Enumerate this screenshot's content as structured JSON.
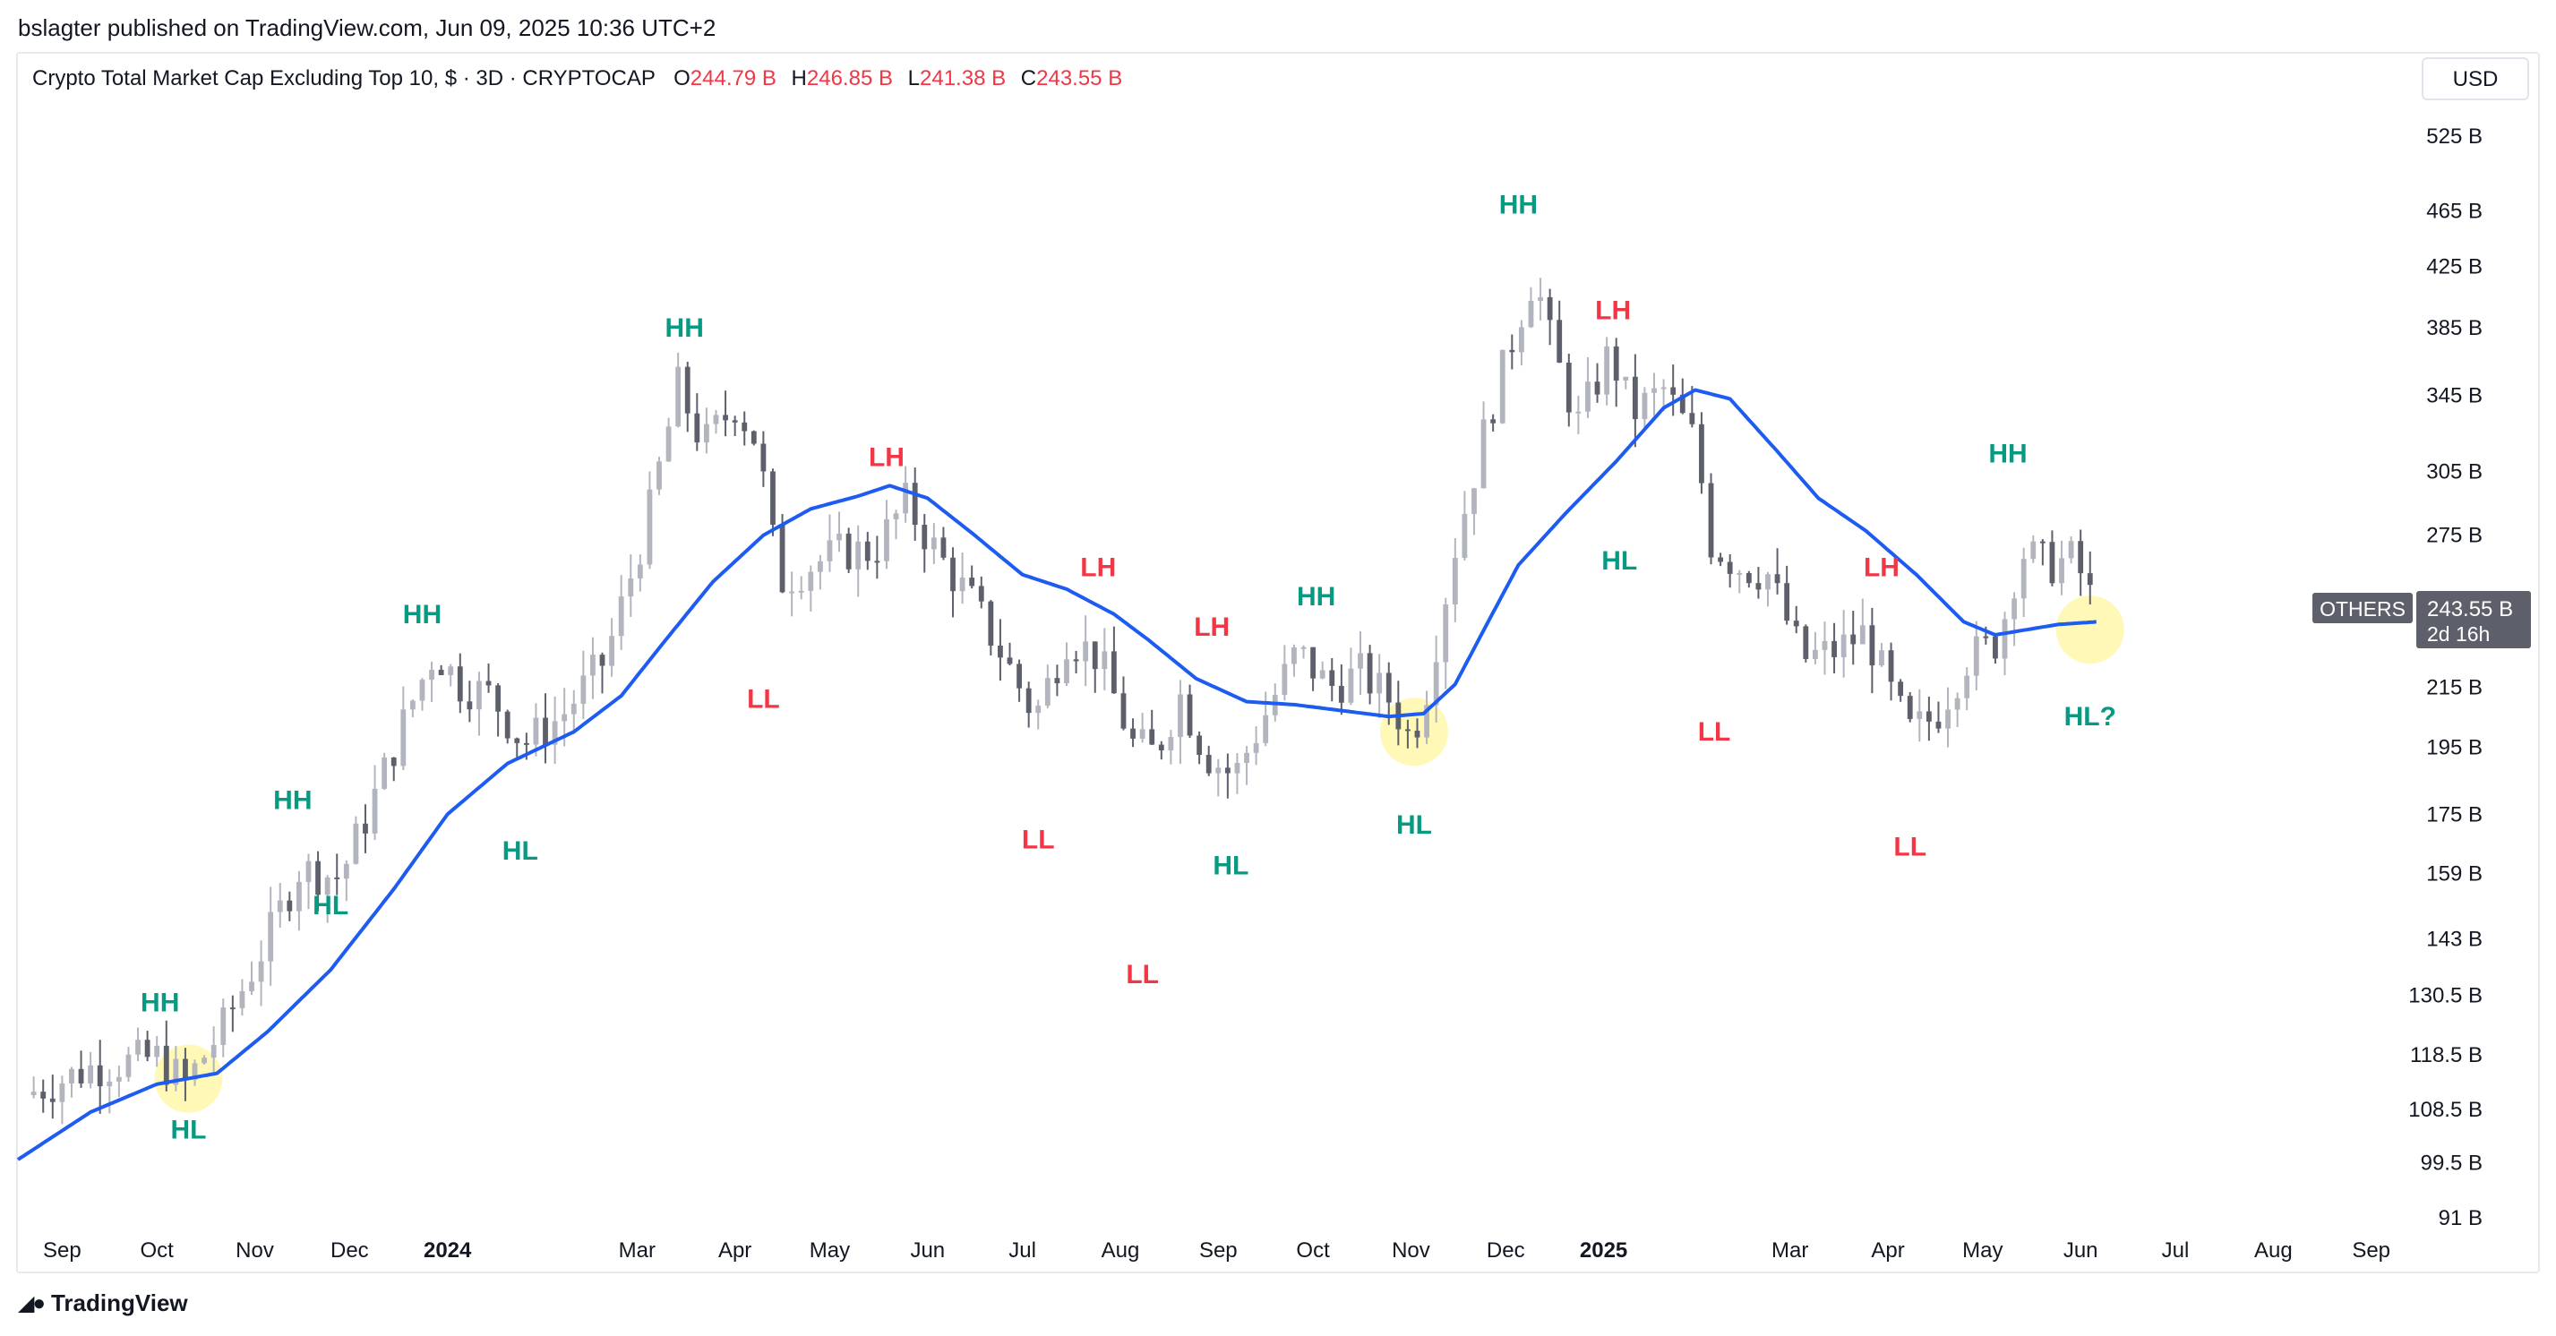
{
  "header": {
    "publisher_line": "bslagter published on TradingView.com, Jun 09, 2025 10:36 UTC+2"
  },
  "legend": {
    "symbol": "Crypto Total Market Cap Excluding Top 10, $ · 3D · CRYPTOCAP",
    "o_label": "O",
    "o_value": "244.79 B",
    "h_label": "H",
    "h_value": "246.85 B",
    "l_label": "L",
    "l_value": "241.38 B",
    "c_label": "C",
    "c_value": "243.55 B"
  },
  "currency_button": "USD",
  "price_tag": {
    "symbol": "OTHERS",
    "price": "243.55 B",
    "countdown": "2d 16h"
  },
  "footer": {
    "brand": "TradingView"
  },
  "colors": {
    "up_candle": "#b2b5be",
    "down_candle": "#5d606b",
    "ma_line": "#1e5bf0",
    "higher_label": "#089981",
    "lower_label": "#f23645",
    "highlight": "#fff59d"
  },
  "chart_data": {
    "type": "candlestick",
    "title": "Crypto Total Market Cap Excluding Top 10",
    "symbol": "OTHERS",
    "interval": "3D",
    "y_scale": "log",
    "ylim": [
      91,
      600
    ],
    "y_ticks": [
      "525 B",
      "465 B",
      "425 B",
      "385 B",
      "345 B",
      "305 B",
      "275 B",
      "215 B",
      "195 B",
      "175 B",
      "159 B",
      "143 B",
      "130.5 B",
      "118.5 B",
      "108.5 B",
      "99.5 B",
      "91 B"
    ],
    "x_ticks": [
      {
        "label": "Sep",
        "date": "2023-09-01"
      },
      {
        "label": "Oct",
        "date": "2023-10-01"
      },
      {
        "label": "Nov",
        "date": "2023-11-01"
      },
      {
        "label": "Dec",
        "date": "2023-12-01"
      },
      {
        "label": "2024",
        "date": "2024-01-01",
        "bold": true
      },
      {
        "label": "Mar",
        "date": "2024-03-01"
      },
      {
        "label": "Apr",
        "date": "2024-04-01"
      },
      {
        "label": "May",
        "date": "2024-05-01"
      },
      {
        "label": "Jun",
        "date": "2024-06-01"
      },
      {
        "label": "Jul",
        "date": "2024-07-01"
      },
      {
        "label": "Aug",
        "date": "2024-08-01"
      },
      {
        "label": "Sep",
        "date": "2024-09-01"
      },
      {
        "label": "Oct",
        "date": "2024-10-01"
      },
      {
        "label": "Nov",
        "date": "2024-11-01"
      },
      {
        "label": "Dec",
        "date": "2024-12-01"
      },
      {
        "label": "2025",
        "date": "2025-01-01",
        "bold": true
      },
      {
        "label": "Mar",
        "date": "2025-03-01"
      },
      {
        "label": "Apr",
        "date": "2025-04-01"
      },
      {
        "label": "May",
        "date": "2025-05-01"
      },
      {
        "label": "Jun",
        "date": "2025-06-01"
      },
      {
        "label": "Jul",
        "date": "2025-07-01"
      },
      {
        "label": "Aug",
        "date": "2025-08-01"
      },
      {
        "label": "Sep",
        "date": "2025-09-01"
      }
    ],
    "x_range": [
      "2023-08-18",
      "2025-09-13"
    ],
    "price_path": [
      [
        "2023-08-20",
        111
      ],
      [
        "2023-09-10",
        116
      ],
      [
        "2023-10-01",
        118
      ],
      [
        "2023-10-10",
        113
      ],
      [
        "2023-10-22",
        124
      ],
      [
        "2023-11-05",
        143
      ],
      [
        "2023-11-15",
        160
      ],
      [
        "2023-11-28",
        158
      ],
      [
        "2023-12-08",
        178
      ],
      [
        "2023-12-20",
        208
      ],
      [
        "2023-12-28",
        228
      ],
      [
        "2024-01-05",
        216
      ],
      [
        "2024-01-15",
        212
      ],
      [
        "2024-01-25",
        196
      ],
      [
        "2024-02-06",
        205
      ],
      [
        "2024-02-20",
        225
      ],
      [
        "2024-03-04",
        280
      ],
      [
        "2024-03-14",
        350
      ],
      [
        "2024-03-22",
        318
      ],
      [
        "2024-04-01",
        340
      ],
      [
        "2024-04-08",
        320
      ],
      [
        "2024-04-15",
        255
      ],
      [
        "2024-04-25",
        262
      ],
      [
        "2024-05-05",
        268
      ],
      [
        "2024-05-15",
        268
      ],
      [
        "2024-05-25",
        290
      ],
      [
        "2024-06-05",
        265
      ],
      [
        "2024-06-15",
        247
      ],
      [
        "2024-06-24",
        228
      ],
      [
        "2024-07-05",
        205
      ],
      [
        "2024-07-15",
        233
      ],
      [
        "2024-07-25",
        226
      ],
      [
        "2024-08-05",
        196
      ],
      [
        "2024-08-12",
        193
      ],
      [
        "2024-08-20",
        212
      ],
      [
        "2024-08-28",
        193
      ],
      [
        "2024-09-06",
        186
      ],
      [
        "2024-09-16",
        206
      ],
      [
        "2024-09-26",
        228
      ],
      [
        "2024-10-06",
        215
      ],
      [
        "2024-10-16",
        220
      ],
      [
        "2024-10-26",
        210
      ],
      [
        "2024-11-01",
        197
      ],
      [
        "2024-11-06",
        215
      ],
      [
        "2024-11-15",
        270
      ],
      [
        "2024-11-25",
        330
      ],
      [
        "2024-12-05",
        390
      ],
      [
        "2024-12-10",
        420
      ],
      [
        "2024-12-16",
        370
      ],
      [
        "2024-12-24",
        330
      ],
      [
        "2025-01-03",
        370
      ],
      [
        "2025-01-10",
        335
      ],
      [
        "2025-01-20",
        348
      ],
      [
        "2025-01-30",
        320
      ],
      [
        "2025-02-04",
        272
      ],
      [
        "2025-02-12",
        262
      ],
      [
        "2025-02-22",
        258
      ],
      [
        "2025-03-05",
        225
      ],
      [
        "2025-03-15",
        228
      ],
      [
        "2025-03-25",
        235
      ],
      [
        "2025-04-03",
        210
      ],
      [
        "2025-04-08",
        200
      ],
      [
        "2025-04-16",
        205
      ],
      [
        "2025-04-26",
        225
      ],
      [
        "2025-05-06",
        232
      ],
      [
        "2025-05-13",
        268
      ],
      [
        "2025-05-22",
        262
      ],
      [
        "2025-05-30",
        265
      ],
      [
        "2025-06-03",
        252
      ],
      [
        "2025-06-06",
        243.55
      ]
    ],
    "ma_path": [
      [
        "2023-08-18",
        100
      ],
      [
        "2023-09-10",
        108
      ],
      [
        "2023-10-01",
        113
      ],
      [
        "2023-10-20",
        115
      ],
      [
        "2023-11-05",
        123
      ],
      [
        "2023-11-25",
        136
      ],
      [
        "2023-12-15",
        155
      ],
      [
        "2024-01-01",
        175
      ],
      [
        "2024-01-20",
        190
      ],
      [
        "2024-02-10",
        200
      ],
      [
        "2024-02-25",
        212
      ],
      [
        "2024-03-10",
        232
      ],
      [
        "2024-03-25",
        255
      ],
      [
        "2024-04-10",
        275
      ],
      [
        "2024-04-25",
        287
      ],
      [
        "2024-05-10",
        293
      ],
      [
        "2024-05-20",
        298
      ],
      [
        "2024-06-01",
        292
      ],
      [
        "2024-06-15",
        276
      ],
      [
        "2024-07-01",
        258
      ],
      [
        "2024-07-15",
        252
      ],
      [
        "2024-07-30",
        242
      ],
      [
        "2024-08-10",
        232
      ],
      [
        "2024-08-25",
        218
      ],
      [
        "2024-09-10",
        210
      ],
      [
        "2024-09-25",
        209
      ],
      [
        "2024-10-10",
        207
      ],
      [
        "2024-10-25",
        205
      ],
      [
        "2024-11-05",
        206
      ],
      [
        "2024-11-15",
        216
      ],
      [
        "2024-11-25",
        238
      ],
      [
        "2024-12-05",
        262
      ],
      [
        "2024-12-20",
        285
      ],
      [
        "2025-01-05",
        310
      ],
      [
        "2025-01-20",
        338
      ],
      [
        "2025-01-30",
        348
      ],
      [
        "2025-02-10",
        343
      ],
      [
        "2025-02-25",
        315
      ],
      [
        "2025-03-10",
        292
      ],
      [
        "2025-03-25",
        277
      ],
      [
        "2025-04-10",
        258
      ],
      [
        "2025-04-25",
        239
      ],
      [
        "2025-05-05",
        234
      ],
      [
        "2025-05-15",
        236
      ],
      [
        "2025-05-25",
        238
      ],
      [
        "2025-06-06",
        239
      ]
    ],
    "annotations": [
      {
        "text": "HH",
        "kind": "higher",
        "date": "2023-10-02",
        "value": 129
      },
      {
        "text": "HL",
        "kind": "higher",
        "date": "2023-10-11",
        "value": 105,
        "highlight": true
      },
      {
        "text": "HH",
        "kind": "higher",
        "date": "2023-11-13",
        "value": 179
      },
      {
        "text": "HL",
        "kind": "higher",
        "date": "2023-11-25",
        "value": 151
      },
      {
        "text": "HH",
        "kind": "higher",
        "date": "2023-12-24",
        "value": 242
      },
      {
        "text": "HL",
        "kind": "higher",
        "date": "2024-01-24",
        "value": 165
      },
      {
        "text": "HH",
        "kind": "higher",
        "date": "2024-03-16",
        "value": 385
      },
      {
        "text": "LL",
        "kind": "lower",
        "date": "2024-04-10",
        "value": 211
      },
      {
        "text": "LH",
        "kind": "lower",
        "date": "2024-05-19",
        "value": 312
      },
      {
        "text": "LL",
        "kind": "lower",
        "date": "2024-07-06",
        "value": 168
      },
      {
        "text": "LH",
        "kind": "lower",
        "date": "2024-07-25",
        "value": 261
      },
      {
        "text": "LL",
        "kind": "lower",
        "date": "2024-08-08",
        "value": 135
      },
      {
        "text": "LH",
        "kind": "lower",
        "date": "2024-08-30",
        "value": 237
      },
      {
        "text": "HL",
        "kind": "higher",
        "date": "2024-09-05",
        "value": 161
      },
      {
        "text": "HH",
        "kind": "higher",
        "date": "2024-10-02",
        "value": 249
      },
      {
        "text": "HL",
        "kind": "higher",
        "date": "2024-11-02",
        "value": 172,
        "highlight": true
      },
      {
        "text": "HH",
        "kind": "higher",
        "date": "2024-12-05",
        "value": 470
      },
      {
        "text": "LH",
        "kind": "lower",
        "date": "2025-01-04",
        "value": 396
      },
      {
        "text": "HL",
        "kind": "higher",
        "date": "2025-01-06",
        "value": 264
      },
      {
        "text": "LL",
        "kind": "lower",
        "date": "2025-02-05",
        "value": 200
      },
      {
        "text": "LH",
        "kind": "lower",
        "date": "2025-03-30",
        "value": 261
      },
      {
        "text": "LL",
        "kind": "lower",
        "date": "2025-04-08",
        "value": 166
      },
      {
        "text": "HH",
        "kind": "higher",
        "date": "2025-05-09",
        "value": 314
      },
      {
        "text": "HL?",
        "kind": "higher",
        "date": "2025-06-04",
        "value": 205,
        "highlight": true
      }
    ],
    "last_price": 243.55
  }
}
